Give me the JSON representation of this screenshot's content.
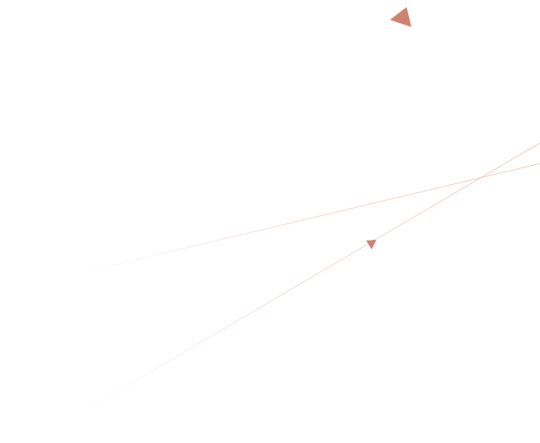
{
  "colors": {
    "background": "#ffffff",
    "accent": "#d0826f",
    "line_tint": "#e8c4b6"
  },
  "shapes": [
    {
      "kind": "triangle",
      "name": "large-triangle-marker"
    },
    {
      "kind": "triangle",
      "name": "small-triangle-marker"
    },
    {
      "kind": "line",
      "name": "lower-diagonal-line"
    },
    {
      "kind": "line",
      "name": "upper-diagonal-line"
    }
  ]
}
